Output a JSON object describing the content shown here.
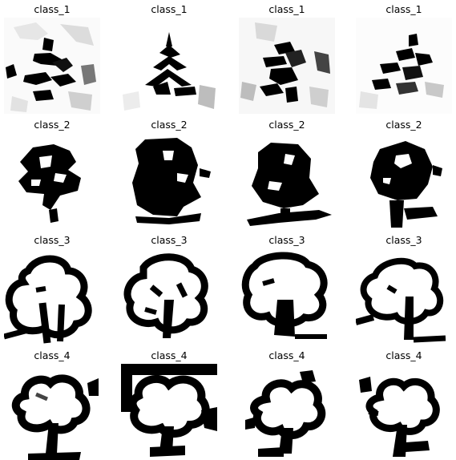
{
  "grid": {
    "rows": 4,
    "cols": 4,
    "cells": [
      {
        "label": "class_1"
      },
      {
        "label": "class_1"
      },
      {
        "label": "class_1"
      },
      {
        "label": "class_1"
      },
      {
        "label": "class_2"
      },
      {
        "label": "class_2"
      },
      {
        "label": "class_2"
      },
      {
        "label": "class_2"
      },
      {
        "label": "class_3"
      },
      {
        "label": "class_3"
      },
      {
        "label": "class_3"
      },
      {
        "label": "class_3"
      },
      {
        "label": "class_4"
      },
      {
        "label": "class_4"
      },
      {
        "label": "class_4"
      },
      {
        "label": "class_4"
      }
    ]
  }
}
